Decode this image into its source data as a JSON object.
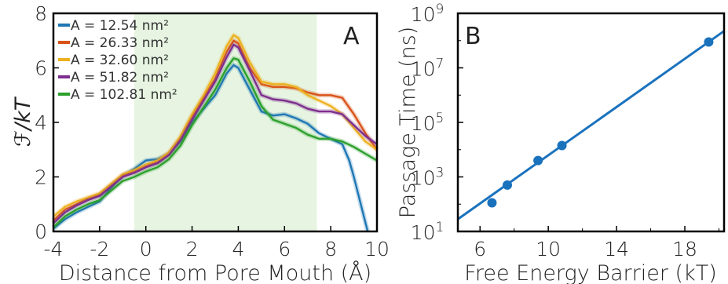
{
  "chart_data": [
    {
      "type": "line",
      "panel_label": "A",
      "title": "",
      "xlabel": "Distance from Pore Mouth (Å)",
      "ylabel": "ℱ/kT",
      "xlim": [
        -4,
        10
      ],
      "ylim": [
        0,
        8
      ],
      "xticks": [
        "-4",
        "-2",
        "0",
        "2",
        "4",
        "6",
        "8",
        "10"
      ],
      "yticks": [
        "0",
        "2",
        "4",
        "6",
        "8"
      ],
      "shaded_region": {
        "x_start": -0.5,
        "x_end": 7.4,
        "color": "#e6f4e1"
      },
      "legend_position": "top-left",
      "series": [
        {
          "name": "A = 12.54 nm²",
          "color": "#1f77b4",
          "x": [
            -4,
            -3.5,
            -3,
            -2.5,
            -2,
            -1.5,
            -1,
            -0.5,
            0,
            0.5,
            1,
            1.5,
            2,
            2.5,
            3,
            3.5,
            3.8,
            4,
            4.5,
            5,
            5.5,
            6,
            6.5,
            7,
            7.5,
            8,
            8.5,
            8.8,
            9,
            9.3,
            9.6
          ],
          "y": [
            0.1,
            0.45,
            0.7,
            0.9,
            1.1,
            1.6,
            2.05,
            2.3,
            2.6,
            2.65,
            2.85,
            3.3,
            4.0,
            4.5,
            5.0,
            5.8,
            6.1,
            6.0,
            5.2,
            4.4,
            4.25,
            4.3,
            4.15,
            3.95,
            3.6,
            3.4,
            3.2,
            2.6,
            2.0,
            1.0,
            0.0
          ]
        },
        {
          "name": "A = 26.33 nm²",
          "color": "#d95319",
          "x": [
            -4,
            -3.5,
            -3,
            -2.5,
            -2,
            -1.5,
            -1,
            -0.5,
            0,
            0.5,
            1,
            1.5,
            2,
            2.5,
            3,
            3.5,
            3.8,
            4,
            4.5,
            5,
            5.5,
            6,
            6.5,
            7,
            7.5,
            8,
            8.5,
            9,
            9.5,
            10
          ],
          "y": [
            0.4,
            0.8,
            1.0,
            1.2,
            1.35,
            1.7,
            2.05,
            2.2,
            2.4,
            2.55,
            2.85,
            3.4,
            4.2,
            4.9,
            5.6,
            6.6,
            7.0,
            6.9,
            6.0,
            5.4,
            5.3,
            5.3,
            5.25,
            5.1,
            5.0,
            5.0,
            4.9,
            4.3,
            3.6,
            3.0
          ]
        },
        {
          "name": "A = 32.60 nm²",
          "color": "#edb120",
          "x": [
            -4,
            -3.5,
            -3,
            -2.5,
            -2,
            -1.5,
            -1,
            -0.5,
            0,
            0.5,
            1,
            1.5,
            2,
            2.5,
            3,
            3.5,
            3.8,
            4,
            4.5,
            5,
            5.5,
            6,
            6.5,
            7,
            7.5,
            8,
            8.5,
            9,
            9.5,
            10
          ],
          "y": [
            0.55,
            0.9,
            1.1,
            1.25,
            1.4,
            1.75,
            2.1,
            2.25,
            2.45,
            2.6,
            2.9,
            3.5,
            4.3,
            5.0,
            5.8,
            6.8,
            7.2,
            7.1,
            6.2,
            5.5,
            5.4,
            5.4,
            5.3,
            5.0,
            4.8,
            4.6,
            4.3,
            3.8,
            3.3,
            3.0
          ]
        },
        {
          "name": "A = 51.82 nm²",
          "color": "#7e2f8e",
          "x": [
            -4,
            -3.5,
            -3,
            -2.5,
            -2,
            -1.5,
            -1,
            -0.5,
            0,
            0.5,
            1,
            1.5,
            2,
            2.5,
            3,
            3.5,
            3.8,
            4,
            4.5,
            5,
            5.5,
            6,
            6.5,
            7,
            7.5,
            8,
            8.5,
            9,
            9.5,
            10
          ],
          "y": [
            0.3,
            0.7,
            0.95,
            1.15,
            1.3,
            1.65,
            2.0,
            2.15,
            2.35,
            2.5,
            2.8,
            3.35,
            4.1,
            4.8,
            5.5,
            6.4,
            6.85,
            6.75,
            5.9,
            5.0,
            4.85,
            4.8,
            4.7,
            4.5,
            4.4,
            4.4,
            4.3,
            3.9,
            3.5,
            3.2
          ]
        },
        {
          "name": "A = 102.81 nm²",
          "color": "#2ca02c",
          "x": [
            -4,
            -3.5,
            -3,
            -2.5,
            -2,
            -1.5,
            -1,
            -0.5,
            0,
            0.5,
            1,
            1.5,
            2,
            2.5,
            3,
            3.5,
            3.8,
            4,
            4.5,
            5,
            5.5,
            6,
            6.5,
            7,
            7.5,
            8,
            8.5,
            9,
            9.5,
            10
          ],
          "y": [
            0.15,
            0.55,
            0.8,
            1.0,
            1.15,
            1.5,
            1.85,
            2.0,
            2.2,
            2.35,
            2.65,
            3.15,
            3.9,
            4.55,
            5.2,
            6.0,
            6.35,
            6.3,
            5.5,
            4.6,
            4.1,
            3.95,
            3.8,
            3.55,
            3.4,
            3.4,
            3.3,
            3.1,
            2.85,
            2.6
          ]
        }
      ]
    },
    {
      "type": "scatter",
      "panel_label": "B",
      "title": "",
      "xlabel": "Free Energy Barrier (kT)",
      "ylabel": "Passage Time (ns)",
      "xlim": [
        4.7,
        20.3
      ],
      "ylim_log10": [
        1,
        9
      ],
      "yscale": "log",
      "xticks": [
        "6",
        "10",
        "14",
        "18"
      ],
      "yticks": [
        "1",
        "3",
        "5",
        "7",
        "9"
      ],
      "ytick_base": "10",
      "color": "#1a72bd",
      "points": [
        {
          "x": 6.7,
          "y_log10": 2.05
        },
        {
          "x": 7.6,
          "y_log10": 2.7
        },
        {
          "x": 9.4,
          "y_log10": 3.6
        },
        {
          "x": 10.8,
          "y_log10": 4.15
        },
        {
          "x": 19.4,
          "y_log10": 7.95
        }
      ],
      "fit_line": {
        "x": [
          4.7,
          20.3
        ],
        "y_log10": [
          1.45,
          8.35
        ]
      }
    }
  ]
}
